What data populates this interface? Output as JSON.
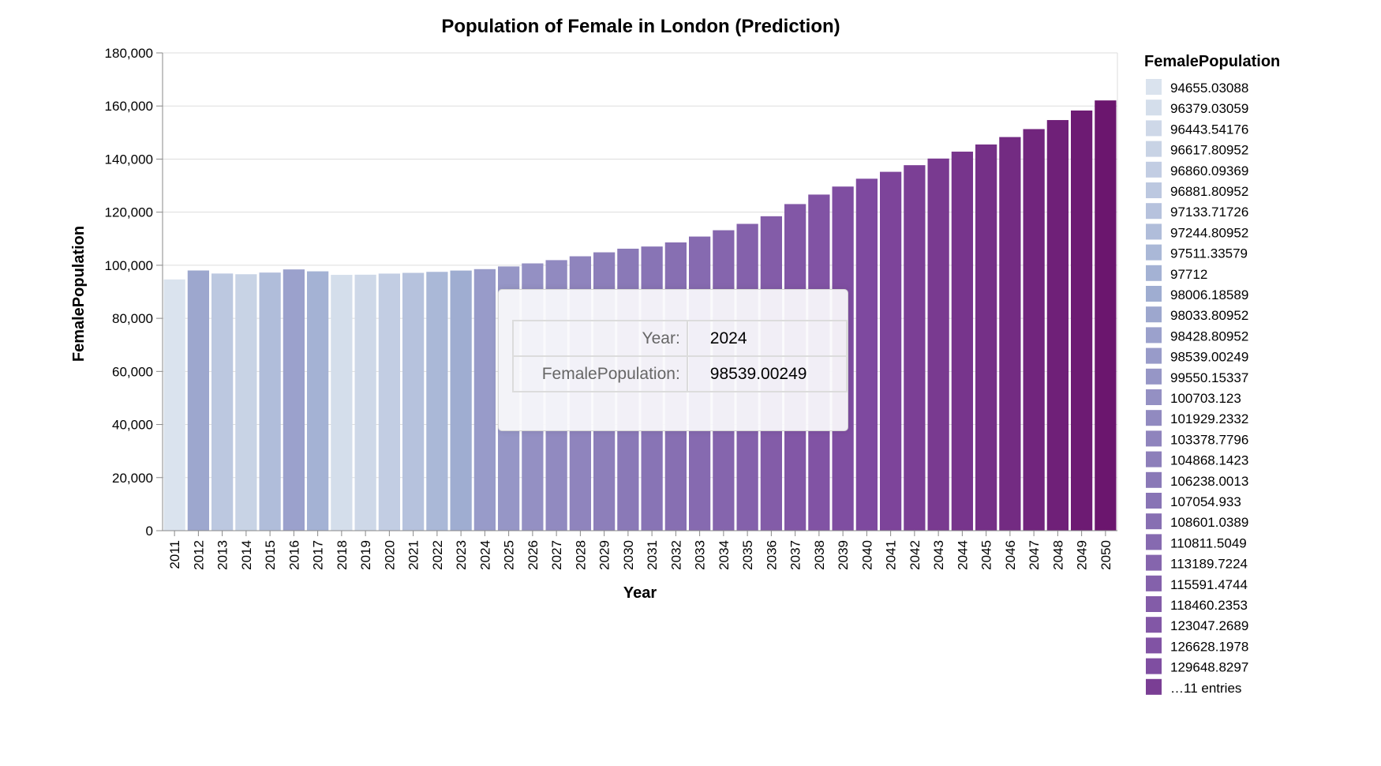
{
  "chart_data": {
    "type": "bar",
    "title": "Population of Female in London (Prediction)",
    "xlabel": "Year",
    "ylabel": "FemalePopulation",
    "ylim": [
      0,
      180000
    ],
    "yticks": [
      0,
      20000,
      40000,
      60000,
      80000,
      100000,
      120000,
      140000,
      160000,
      180000
    ],
    "ytick_labels": [
      "0",
      "20,000",
      "40,000",
      "60,000",
      "80,000",
      "100,000",
      "120,000",
      "140,000",
      "160,000",
      "180,000"
    ],
    "grid": true,
    "legend_position": "right",
    "color_scheme": "purples",
    "categories": [
      "2011",
      "2012",
      "2013",
      "2014",
      "2015",
      "2016",
      "2017",
      "2018",
      "2019",
      "2020",
      "2021",
      "2022",
      "2023",
      "2024",
      "2025",
      "2026",
      "2027",
      "2028",
      "2029",
      "2030",
      "2031",
      "2032",
      "2033",
      "2034",
      "2035",
      "2036",
      "2037",
      "2038",
      "2039",
      "2040",
      "2041",
      "2042",
      "2043",
      "2044",
      "2045",
      "2046",
      "2047",
      "2048",
      "2049",
      "2050"
    ],
    "values": [
      94655.03088,
      98033.80952,
      96881.80952,
      96617.80952,
      97244.80952,
      98428.80952,
      97712,
      96379.03059,
      96443.54176,
      96860.09369,
      97133.71726,
      97511.33579,
      98006.18589,
      98539.00249,
      99550.15337,
      100703.123,
      101929.2332,
      103378.7796,
      104868.1423,
      106238.0013,
      107054.933,
      108601.0389,
      110811.5049,
      113189.7224,
      115591.4744,
      118460.2353,
      123047.2689,
      126628.1978,
      129648.8297,
      132600,
      135200,
      137700,
      140200,
      142800,
      145500,
      148300,
      151300,
      154700,
      158300,
      162100
    ]
  },
  "legend": {
    "title": "FemalePopulation",
    "items": [
      "94655.03088",
      "96379.03059",
      "96443.54176",
      "96617.80952",
      "96860.09369",
      "96881.80952",
      "97133.71726",
      "97244.80952",
      "97511.33579",
      "97712",
      "98006.18589",
      "98033.80952",
      "98428.80952",
      "98539.00249",
      "99550.15337",
      "100703.123",
      "101929.2332",
      "103378.7796",
      "104868.1423",
      "106238.0013",
      "107054.933",
      "108601.0389",
      "110811.5049",
      "113189.7224",
      "115591.4744",
      "118460.2353",
      "123047.2689",
      "126628.1978",
      "129648.8297"
    ],
    "more": "…11 entries"
  },
  "tooltip": {
    "year_key": "Year:",
    "year_value": "2024",
    "pop_key": "FemalePopulation:",
    "pop_value": "98539.00249"
  }
}
